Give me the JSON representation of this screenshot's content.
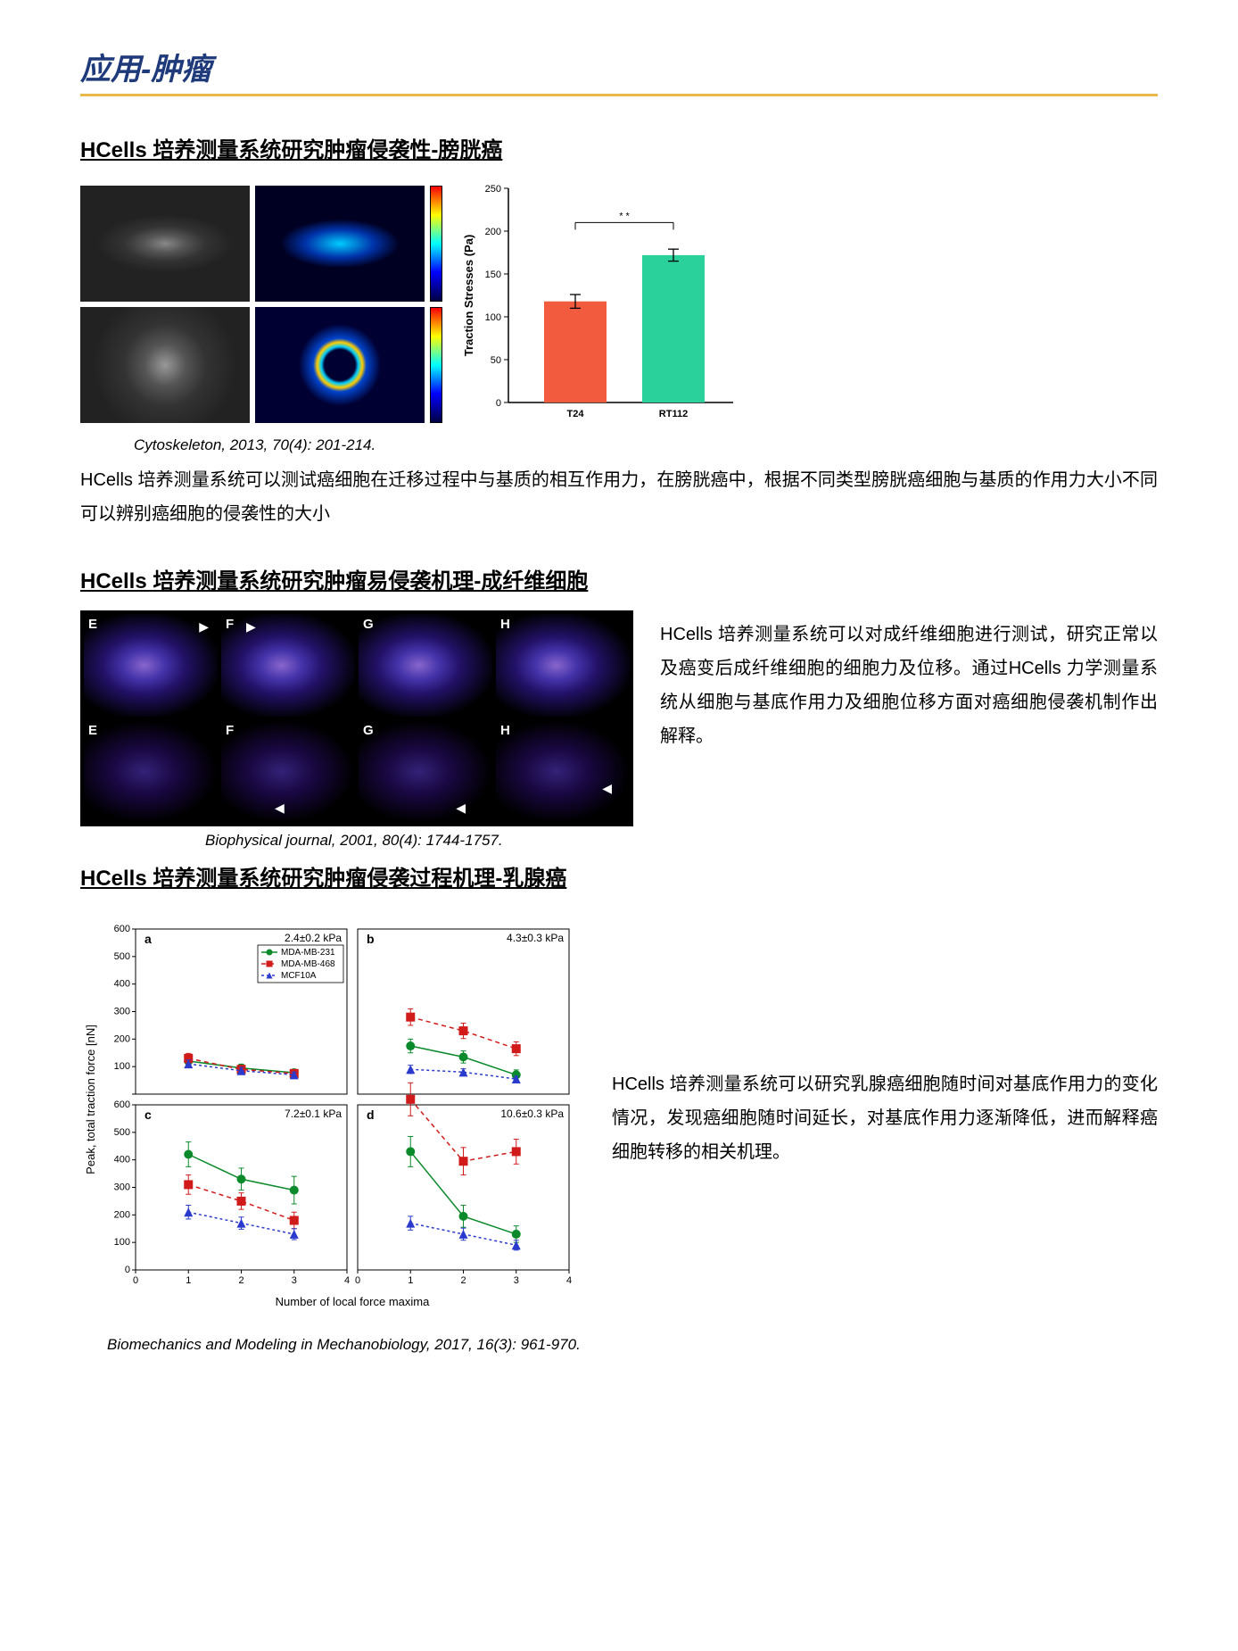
{
  "page_title": "应用-肿瘤",
  "section1": {
    "heading": "HCells 培养测量系统研究肿瘤侵袭性-膀胱癌",
    "citation": "Cytoskeleton, 2013, 70(4): 201-214.",
    "body": "HCells  培养测量系统可以测试癌细胞在迁移过程中与基质的相互作用力，在膀胱癌中，根据不同类型膀胱癌细胞与基质的作用力大小不同可以辨别癌细胞的侵袭性的大小",
    "bar_chart": {
      "ylabel": "Traction Stresses (Pa)",
      "ylim": [
        0,
        250
      ],
      "ytick_step": 50,
      "categories": [
        "T24",
        "RT112"
      ],
      "values": [
        118,
        172
      ],
      "errors": [
        8,
        7
      ],
      "bar_colors": [
        "#f35b3f",
        "#2ad19a"
      ],
      "sig_label": "* *",
      "background": "#ffffff",
      "axis_color": "#000000"
    }
  },
  "section2": {
    "heading": "HCells 培养测量系统研究肿瘤易侵袭机理-成纤维细胞",
    "citation": "Biophysical journal, 2001, 80(4): 1744-1757.",
    "side_text": "HCells  培养测量系统可以对成纤维细胞进行测试，研究正常以及癌变后成纤维细胞的细胞力及位移。通过HCells 力学测量系统从细胞与基底作用力及细胞位移方面对癌细胞侵袭机制作出解释。",
    "panel_labels": [
      "E",
      "F",
      "G",
      "H",
      "E",
      "F",
      "G",
      "H"
    ]
  },
  "section3": {
    "heading": "HCells 培养测量系统研究肿瘤侵袭过程机理-乳腺癌",
    "citation": "Biomechanics and Modeling in Mechanobiology, 2017, 16(3): 961-970.",
    "side_text": "HCells  培养测量系统可以研究乳腺癌细胞随时间对基底作用力的变化情况，发现癌细胞随时间延长，对基底作用力逐渐降低，进而解释癌细胞转移的相关机理。",
    "chart": {
      "ylabel": "Peak, total traction force [nN]",
      "xlabel": "Number of local force maxima",
      "xlim": [
        0,
        4
      ],
      "xticks": [
        0,
        1,
        2,
        3,
        4
      ],
      "series_names": [
        "MDA-MB-231",
        "MDA-MB-468",
        "MCF10A"
      ],
      "series_colors": [
        "#0a8a2a",
        "#d11a1a",
        "#2a3acc"
      ],
      "series_markers": [
        "circle",
        "square",
        "triangle"
      ],
      "series_dash": [
        "solid",
        "5,4",
        "3,3"
      ],
      "marker_size": 5,
      "line_width": 1.5,
      "panels": [
        {
          "label": "a",
          "title": "2.4±0.2 kPa",
          "ylim": [
            0,
            600
          ],
          "ytick": 100,
          "s1": {
            "x": [
              1,
              2,
              3
            ],
            "y": [
              120,
              95,
              78
            ],
            "e": [
              15,
              14,
              12
            ]
          },
          "s2": {
            "x": [
              1,
              2,
              3
            ],
            "y": [
              130,
              90,
              75
            ],
            "e": [
              18,
              15,
              12
            ]
          },
          "s3": {
            "x": [
              1,
              2,
              3
            ],
            "y": [
              110,
              85,
              70
            ],
            "e": [
              14,
              12,
              10
            ]
          }
        },
        {
          "label": "b",
          "title": "4.3±0.3 kPa",
          "ylim": [
            0,
            600
          ],
          "ytick": 100,
          "s1": {
            "x": [
              1,
              2,
              3
            ],
            "y": [
              175,
              135,
              70
            ],
            "e": [
              25,
              22,
              18
            ]
          },
          "s2": {
            "x": [
              1,
              2,
              3
            ],
            "y": [
              280,
              230,
              165
            ],
            "e": [
              30,
              28,
              25
            ]
          },
          "s3": {
            "x": [
              1,
              2,
              3
            ],
            "y": [
              90,
              80,
              55
            ],
            "e": [
              15,
              12,
              10
            ]
          }
        },
        {
          "label": "c",
          "title": "7.2±0.1 kPa",
          "ylim": [
            0,
            600
          ],
          "ytick": 100,
          "s1": {
            "x": [
              1,
              2,
              3
            ],
            "y": [
              420,
              330,
              290
            ],
            "e": [
              45,
              40,
              50
            ]
          },
          "s2": {
            "x": [
              1,
              2,
              3
            ],
            "y": [
              310,
              250,
              180
            ],
            "e": [
              35,
              30,
              30
            ]
          },
          "s3": {
            "x": [
              1,
              2,
              3
            ],
            "y": [
              210,
              170,
              130
            ],
            "e": [
              25,
              22,
              20
            ]
          }
        },
        {
          "label": "d",
          "title": "10.6±0.3 kPa",
          "ylim": [
            0,
            600
          ],
          "ytick": 100,
          "s1": {
            "x": [
              1,
              2,
              3
            ],
            "y": [
              430,
              195,
              130
            ],
            "e": [
              55,
              40,
              30
            ]
          },
          "s2": {
            "x": [
              1,
              2,
              3
            ],
            "y": [
              620,
              395,
              430
            ],
            "e": [
              60,
              50,
              45
            ]
          },
          "s3": {
            "x": [
              1,
              2,
              3
            ],
            "y": [
              170,
              130,
              90
            ],
            "e": [
              25,
              22,
              18
            ]
          }
        }
      ]
    }
  }
}
